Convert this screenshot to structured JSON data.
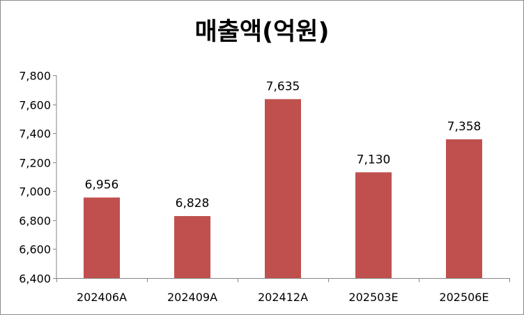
{
  "chart_data": {
    "type": "bar",
    "title": "매출액(억원)",
    "categories": [
      "202406A",
      "202409A",
      "202412A",
      "202503E",
      "202506E"
    ],
    "values": [
      6956,
      6828,
      7635,
      7130,
      7358
    ],
    "data_labels": [
      "6,956",
      "6,828",
      "7,635",
      "7,130",
      "7,358"
    ],
    "xlabel": "",
    "ylabel": "",
    "ylim": [
      6400,
      7800
    ],
    "yticks": [
      6400,
      6600,
      6800,
      7000,
      7200,
      7400,
      7600,
      7800
    ],
    "ytick_labels": [
      "6,400",
      "6,600",
      "6,800",
      "7,000",
      "7,200",
      "7,400",
      "7,600",
      "7,800"
    ],
    "grid": false,
    "legend": "none",
    "bar_color": "#C0504D",
    "axis_color": "#868686"
  }
}
